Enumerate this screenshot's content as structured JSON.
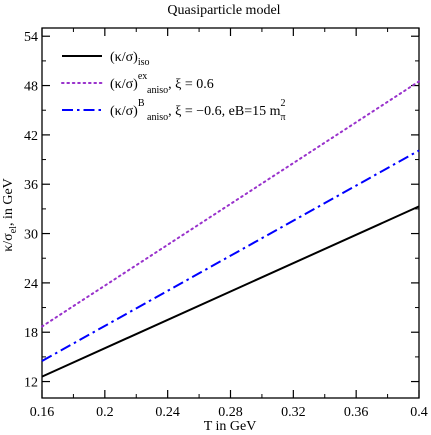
{
  "chart_data": {
    "type": "line",
    "title": "Quasiparticle model",
    "xlabel": "T in GeV",
    "ylabel_parts": {
      "base": "κ/σ",
      "sub": "el",
      "rest": ", in GeV"
    },
    "xlim": [
      0.16,
      0.4
    ],
    "ylim": [
      10,
      55
    ],
    "xticks": [
      "0.16",
      "0.2",
      "0.24",
      "0.28",
      "0.32",
      "0.36",
      "0.4"
    ],
    "yticks": [
      "12",
      "18",
      "24",
      "30",
      "36",
      "42",
      "48",
      "54"
    ],
    "grid": false,
    "legend_position": "top-left",
    "series": [
      {
        "label_main": "(κ/σ)",
        "label_sub": "iso",
        "label_sup": "",
        "label_tail": "",
        "color": "#000000",
        "style": "solid",
        "x": [
          0.16,
          0.4
        ],
        "y": [
          12.6,
          33.3
        ]
      },
      {
        "label_main": "(κ/σ)",
        "label_sub": "aniso",
        "label_sup": "ex",
        "label_tail": ", ξ = 0.6",
        "color": "#9932cc",
        "style": "dotted",
        "x": [
          0.16,
          0.4
        ],
        "y": [
          18.7,
          48.5
        ]
      },
      {
        "label_main": "(κ/σ)",
        "label_sub": "aniso",
        "label_sup": "B",
        "label_tail": ", ξ = −0.6, eB=15 m",
        "label_tail_sub": "π",
        "label_tail_sup": "2",
        "color": "#0000ff",
        "style": "dashdot",
        "x": [
          0.16,
          0.4
        ],
        "y": [
          14.5,
          40.1
        ]
      }
    ]
  }
}
